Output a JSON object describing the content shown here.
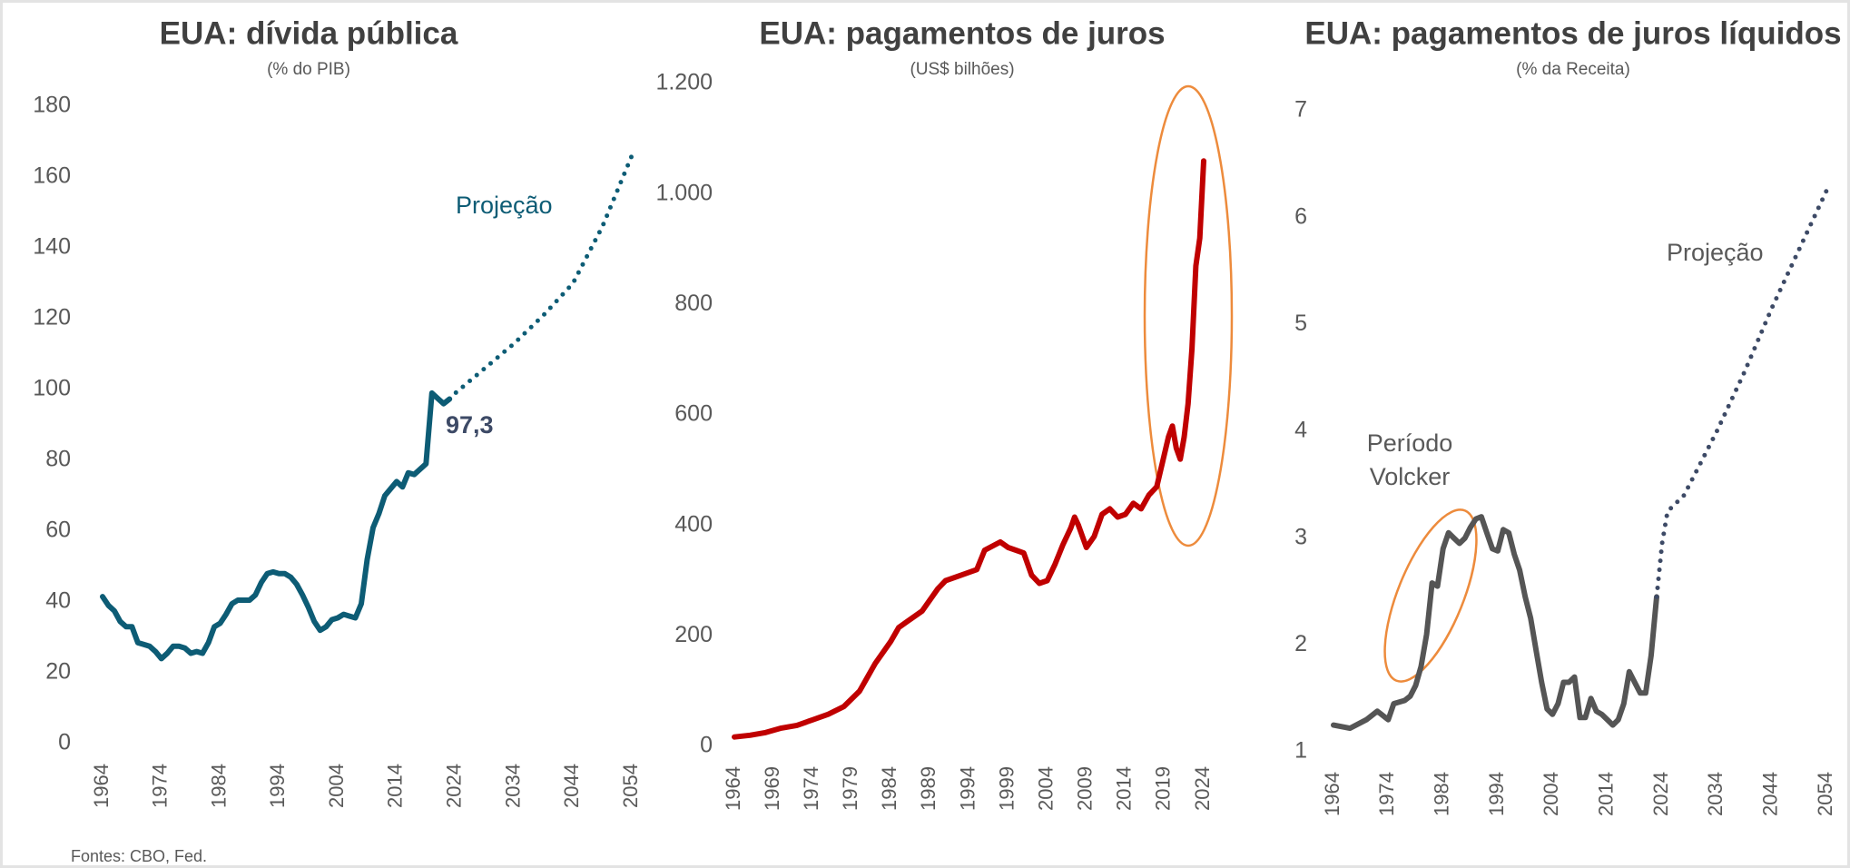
{
  "source": "Fontes: CBO, Fed.",
  "chart_data": [
    {
      "type": "line",
      "title": "EUA: dívida pública",
      "subtitle": "(% do PIB)",
      "xlim": [
        1964,
        2054
      ],
      "xticks": [
        1964,
        1974,
        1984,
        1994,
        2004,
        2014,
        2024,
        2034,
        2044,
        2054
      ],
      "ylim": [
        0,
        180
      ],
      "yticks": [
        0,
        20,
        40,
        60,
        80,
        100,
        120,
        140,
        160,
        180
      ],
      "annotations": [
        "Projeção",
        "97,3"
      ],
      "series": [
        {
          "color": "#0d5c75",
          "style": "solid",
          "x": [
            1964,
            1965,
            1966,
            1967,
            1968,
            1969,
            1970,
            1971,
            1972,
            1973,
            1974,
            1975,
            1976,
            1977,
            1978,
            1979,
            1980,
            1981,
            1982,
            1983,
            1984,
            1985,
            1986,
            1987,
            1988,
            1989,
            1990,
            1991,
            1992,
            1993,
            1994,
            1995,
            1996,
            1997,
            1998,
            1999,
            2000,
            2001,
            2002,
            2003,
            2004,
            2005,
            2006,
            2007,
            2008,
            2009,
            2010,
            2011,
            2012,
            2013,
            2014,
            2015,
            2016,
            2017,
            2018,
            2019,
            2020,
            2021,
            2022,
            2023
          ],
          "values": [
            41.5,
            39,
            37.5,
            34.5,
            33,
            33,
            28.5,
            28,
            27.5,
            26,
            24,
            25.5,
            27.5,
            27.5,
            27,
            25.5,
            26,
            25.5,
            28.5,
            33,
            34,
            36.5,
            39.5,
            40.5,
            40.5,
            40.5,
            42,
            45.5,
            48,
            48.5,
            48,
            48,
            47,
            45,
            42,
            38.5,
            34.5,
            32,
            33,
            35,
            35.5,
            36.5,
            36,
            35.5,
            39.5,
            52,
            61,
            65,
            70,
            72,
            74,
            72.5,
            76.5,
            76,
            77.5,
            79,
            99,
            97.5,
            96,
            97.3
          ]
        },
        {
          "color": "#0d5c75",
          "style": "dotted",
          "x": [
            2023,
            2024,
            2029,
            2034,
            2039,
            2044,
            2049,
            2054
          ],
          "values": [
            97.3,
            99,
            106,
            113,
            121,
            130,
            146,
            166
          ]
        }
      ]
    },
    {
      "type": "line",
      "title": "EUA: pagamentos de juros",
      "subtitle": "(US$ bilhões)",
      "xlim": [
        1964,
        2024
      ],
      "xticks": [
        1964,
        1969,
        1974,
        1979,
        1984,
        1989,
        1994,
        1999,
        2004,
        2009,
        2014,
        2019,
        2024
      ],
      "ylim": [
        0,
        1200
      ],
      "yticks": [
        0,
        200,
        400,
        600,
        800,
        {
          "value": 1000,
          "label": "1.000"
        },
        {
          "value": 1200,
          "label": "1.200"
        }
      ],
      "series": [
        {
          "color": "#c00000",
          "style": "solid",
          "x": [
            1964,
            1966,
            1968,
            1970,
            1972,
            1974,
            1976,
            1978,
            1980,
            1981,
            1982,
            1984,
            1985,
            1986,
            1988,
            1990,
            1991,
            1993,
            1995,
            1996,
            1998,
            1999,
            2000,
            2001,
            2002,
            2003,
            2004,
            2005,
            2006,
            2007,
            2007.5,
            2008,
            2009,
            2010,
            2011,
            2012,
            2013,
            2014,
            2015,
            2016,
            2017,
            2018,
            2019,
            2019.5,
            2020,
            2020.5,
            2021,
            2021.5,
            2022,
            2022.5,
            2023,
            2023.5,
            2024
          ],
          "values": [
            17,
            20,
            25,
            33,
            38,
            48,
            58,
            72,
            100,
            125,
            150,
            190,
            215,
            225,
            245,
            285,
            300,
            310,
            320,
            355,
            370,
            360,
            355,
            350,
            310,
            295,
            300,
            330,
            365,
            395,
            415,
            400,
            360,
            380,
            420,
            430,
            415,
            420,
            440,
            430,
            455,
            470,
            530,
            560,
            580,
            540,
            520,
            560,
            620,
            720,
            870,
            920,
            1060
          ]
        }
      ]
    },
    {
      "type": "line",
      "title": "EUA: pagamentos de juros líquidos",
      "subtitle": "(% da Receita)",
      "xlim": [
        1964,
        2054
      ],
      "xticks": [
        1964,
        1974,
        1984,
        1994,
        2004,
        2014,
        2024,
        2034,
        2044,
        2054
      ],
      "ylim": [
        1,
        7
      ],
      "yticks": [
        1,
        2,
        3,
        4,
        5,
        6,
        7
      ],
      "annotations": [
        "Projeção",
        "Período",
        "Volcker"
      ],
      "series": [
        {
          "color": "#555555",
          "style": "solid",
          "x": [
            1964,
            1967,
            1970,
            1972,
            1974,
            1975,
            1977,
            1978,
            1979,
            1980,
            1981,
            1982,
            1983,
            1984,
            1985,
            1986,
            1987,
            1988,
            1989,
            1990,
            1991,
            1992,
            1993,
            1994,
            1995,
            1996,
            1997,
            1998,
            1999,
            2000,
            2001,
            2002,
            2003,
            2004,
            2005,
            2006,
            2007,
            2008,
            2009,
            2010,
            2011,
            2012,
            2013,
            2014,
            2015,
            2016,
            2017,
            2018,
            2019,
            2020,
            2021,
            2022,
            2023
          ],
          "values": [
            1.25,
            1.22,
            1.3,
            1.38,
            1.3,
            1.45,
            1.48,
            1.52,
            1.62,
            1.8,
            2.1,
            2.58,
            2.55,
            2.9,
            3.05,
            3.0,
            2.95,
            3.0,
            3.1,
            3.18,
            3.2,
            3.05,
            2.9,
            2.88,
            3.08,
            3.05,
            2.85,
            2.7,
            2.45,
            2.25,
            1.95,
            1.65,
            1.4,
            1.35,
            1.45,
            1.65,
            1.65,
            1.7,
            1.32,
            1.32,
            1.5,
            1.38,
            1.35,
            1.3,
            1.25,
            1.3,
            1.45,
            1.75,
            1.65,
            1.55,
            1.55,
            1.9,
            2.45
          ]
        },
        {
          "color": "#3d4a66",
          "style": "dotted",
          "x": [
            2023,
            2024,
            2025,
            2026,
            2028,
            2030,
            2034,
            2039,
            2044,
            2049,
            2054
          ],
          "values": [
            2.45,
            2.95,
            3.25,
            3.3,
            3.4,
            3.6,
            4.0,
            4.55,
            5.15,
            5.7,
            6.25
          ]
        }
      ]
    }
  ]
}
